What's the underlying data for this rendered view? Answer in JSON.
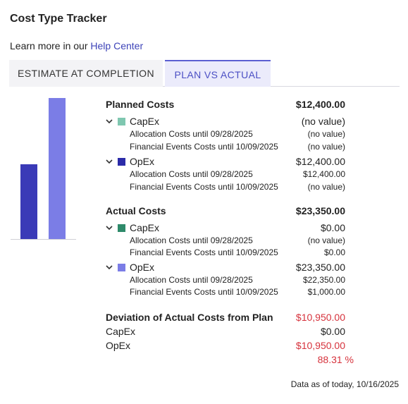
{
  "header": {
    "title": "Cost Type Tracker"
  },
  "help": {
    "prefix": "Learn more in our ",
    "link": "Help Center"
  },
  "tabs": {
    "eac": "ESTIMATE AT COMPLETION",
    "pva": "PLAN VS ACTUAL"
  },
  "chart_data": {
    "type": "bar",
    "categories": [
      "Planned Costs",
      "Actual Costs"
    ],
    "values": [
      12400,
      23350
    ],
    "colors": [
      "#3a3ab7",
      "#7b7de6"
    ]
  },
  "planned": {
    "label": "Planned Costs",
    "total": "$12,400.00",
    "capex": {
      "name": "CapEx",
      "value": "(no value)",
      "color": "#7fc7b0",
      "alloc_label": "Allocation Costs until 09/28/2025",
      "alloc_value": "(no value)",
      "fin_label": "Financial Events Costs until 10/09/2025",
      "fin_value": "(no value)"
    },
    "opex": {
      "name": "OpEx",
      "value": "$12,400.00",
      "color": "#2b2ba8",
      "alloc_label": "Allocation Costs until 09/28/2025",
      "alloc_value": "$12,400.00",
      "fin_label": "Financial Events Costs until 10/09/2025",
      "fin_value": "(no value)"
    }
  },
  "actual": {
    "label": "Actual Costs",
    "total": "$23,350.00",
    "capex": {
      "name": "CapEx",
      "value": "$0.00",
      "color": "#2e8a6a",
      "alloc_label": "Allocation Costs until 09/28/2025",
      "alloc_value": "(no value)",
      "fin_label": "Financial Events Costs until 10/09/2025",
      "fin_value": "$0.00"
    },
    "opex": {
      "name": "OpEx",
      "value": "$23,350.00",
      "color": "#7b7de6",
      "alloc_label": "Allocation Costs until 09/28/2025",
      "alloc_value": "$22,350.00",
      "fin_label": "Financial Events Costs until 10/09/2025",
      "fin_value": "$1,000.00"
    }
  },
  "deviation": {
    "label": "Deviation of Actual Costs from Plan",
    "total": "$10,950.00",
    "capex_label": "CapEx",
    "capex_value": "$0.00",
    "opex_label": "OpEx",
    "opex_value": "$10,950.00",
    "percent": "88.31 %"
  },
  "footer": {
    "text": "Data as of today, 10/16/2025"
  }
}
